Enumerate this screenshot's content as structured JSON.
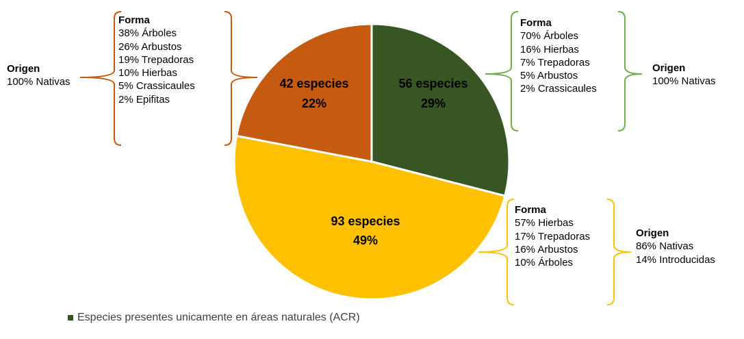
{
  "chart_data": {
    "type": "pie",
    "slices": [
      {
        "label": "56 especies",
        "count": 56,
        "percent_label": "29%",
        "value": 29,
        "color": "#375623"
      },
      {
        "label": "93 especies",
        "count": 93,
        "percent_label": "49%",
        "value": 49,
        "color": "#FFC000"
      },
      {
        "label": "42 especies",
        "count": 42,
        "percent_label": "22%",
        "value": 22,
        "color": "#C55A11"
      }
    ],
    "annotations": {
      "green": {
        "forma_title": "Forma",
        "forma_items": [
          "70% Árboles",
          "16% Hierbas",
          "7% Trepadoras",
          "5% Arbustos",
          "2% Crassicaules"
        ],
        "origen_title": "Origen",
        "origen_items": [
          "100% Nativas"
        ],
        "color": "#70AD47"
      },
      "yellow": {
        "forma_title": "Forma",
        "forma_items": [
          "57% Hierbas",
          "17% Trepadoras",
          "16% Arbustos",
          "10% Árboles"
        ],
        "origen_title": "Origen",
        "origen_items": [
          "86% Nativas",
          "14% Introducidas"
        ],
        "color": "#FFC000"
      },
      "orange": {
        "forma_title": "Forma",
        "forma_items": [
          "38% Árboles",
          "26% Arbustos",
          "19% Trepadoras",
          "10% Hierbas",
          "5% Crassicaules",
          "2% Epifitas"
        ],
        "origen_title": "Origen",
        "origen_items": [
          "100% Nativas"
        ],
        "color": "#C55A11"
      }
    },
    "legend": {
      "entries": [
        {
          "label": "Especies presentes unicamente en áreas naturales (ACR)",
          "color": "#375623"
        }
      ],
      "placement": "bottom-left"
    }
  }
}
